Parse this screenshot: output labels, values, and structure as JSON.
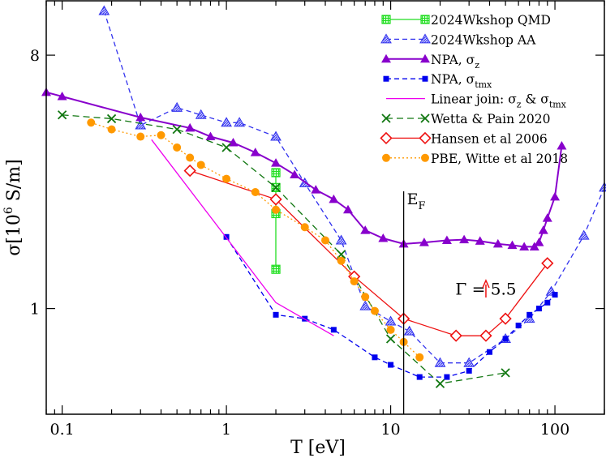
{
  "chart_data": {
    "type": "line",
    "xscale": "log",
    "yscale": "log",
    "xlim": [
      0.08,
      200
    ],
    "ylim": [
      0.42,
      12.5
    ],
    "xlabel": "T [eV]",
    "ylabel": {
      "base": "σ[10",
      "exp": "6",
      "unit": " S/m]"
    },
    "xticks": [
      {
        "value": 0.1,
        "label": "0.1"
      },
      {
        "value": 1,
        "label": "1"
      },
      {
        "value": 10,
        "label": "10"
      },
      {
        "value": 100,
        "label": "100"
      }
    ],
    "yticks": [
      {
        "value": 1,
        "label": "1"
      },
      {
        "value": 8,
        "label": "8"
      }
    ],
    "series": [
      {
        "name": "2024Wkshop QMD",
        "legend_sub": "",
        "color": "#22dd22",
        "dash": "",
        "marker": "hatched-square",
        "x": [
          2,
          2,
          2,
          2
        ],
        "y": [
          3.05,
          2.7,
          2.18,
          1.38
        ]
      },
      {
        "name": "2024Wkshop AA",
        "legend_sub": "",
        "color": "#3333ee",
        "dash": "6,4",
        "marker": "hatched-triangle",
        "x": [
          0.18,
          0.3,
          0.5,
          0.7,
          1.0,
          1.2,
          2,
          3,
          5,
          7,
          10,
          13,
          20,
          30,
          50,
          70,
          95,
          150,
          200
        ],
        "y": [
          11.5,
          4.5,
          5.2,
          4.9,
          4.6,
          4.6,
          4.1,
          2.8,
          1.75,
          1.02,
          0.9,
          0.83,
          0.64,
          0.64,
          0.78,
          0.92,
          1.15,
          1.82,
          2.7
        ]
      },
      {
        "name": "NPA, σ",
        "legend_sub": "z",
        "color": "#8800cc",
        "dash": "",
        "marker": "triangle",
        "x": [
          0.08,
          0.1,
          0.3,
          0.6,
          0.8,
          1.1,
          1.5,
          2,
          2.6,
          3.5,
          4.5,
          5.5,
          7,
          9,
          12,
          16,
          22,
          28,
          35,
          45,
          55,
          65,
          75,
          80,
          85,
          90,
          100,
          110
        ],
        "y": [
          5.9,
          5.7,
          4.8,
          4.4,
          4.1,
          3.9,
          3.6,
          3.3,
          3.0,
          2.65,
          2.45,
          2.25,
          1.9,
          1.78,
          1.7,
          1.72,
          1.75,
          1.76,
          1.74,
          1.7,
          1.68,
          1.66,
          1.66,
          1.72,
          1.9,
          2.1,
          2.5,
          3.8
        ]
      },
      {
        "name": "NPA, σ",
        "legend_sub": "tmx",
        "color": "#0000ee",
        "dash": "6,4",
        "marker": "square",
        "x": [
          1,
          2,
          3,
          4.5,
          8,
          10,
          15,
          22,
          30,
          40,
          50,
          60,
          70,
          80,
          90,
          100
        ],
        "y": [
          1.8,
          0.95,
          0.92,
          0.84,
          0.67,
          0.63,
          0.57,
          0.57,
          0.6,
          0.7,
          0.78,
          0.87,
          0.95,
          1.0,
          1.05,
          1.12
        ]
      },
      {
        "name": "Linear join: σ",
        "legend_sub": "z",
        "legend_tail": " &  σ",
        "legend_sub2": "tmx",
        "color": "#ee00ee",
        "dash": "",
        "marker": "none",
        "x": [
          0.35,
          2,
          4.5
        ],
        "y": [
          4.0,
          1.05,
          0.8
        ]
      },
      {
        "name": "Wetta & Pain  2020",
        "legend_sub": "",
        "color": "#117711",
        "dash": "8,5",
        "marker": "cross",
        "x": [
          0.1,
          0.2,
          0.5,
          1,
          2,
          5,
          10,
          20,
          50
        ],
        "y": [
          4.9,
          4.75,
          4.35,
          3.75,
          2.7,
          1.56,
          0.78,
          0.54,
          0.59
        ]
      },
      {
        "name": "Hansen et al 2006",
        "legend_sub": "",
        "color": "#ee1111",
        "dash": "",
        "marker": "diamond",
        "x": [
          0.6,
          2,
          6,
          12,
          25,
          38,
          50,
          90
        ],
        "y": [
          3.1,
          2.45,
          1.3,
          0.92,
          0.8,
          0.8,
          0.92,
          1.45
        ]
      },
      {
        "name": "PBE, Witte et al 2018",
        "legend_sub": "",
        "color": "#ff9900",
        "dash": "2,3",
        "marker": "circle",
        "x": [
          0.15,
          0.2,
          0.3,
          0.4,
          0.5,
          0.6,
          0.7,
          1,
          1.5,
          2,
          3,
          4,
          5,
          6,
          7,
          8,
          10,
          12,
          15
        ],
        "y": [
          4.6,
          4.35,
          4.1,
          4.15,
          3.75,
          3.45,
          3.25,
          2.9,
          2.6,
          2.25,
          1.95,
          1.75,
          1.48,
          1.25,
          1.1,
          0.98,
          0.84,
          0.76,
          0.67
        ]
      }
    ],
    "vline": {
      "x": 12,
      "label": "E",
      "sub": "F"
    },
    "annotation": {
      "text": "Γ = 5.5",
      "x": 38,
      "y": 1.12,
      "color": "#ee1111"
    },
    "legend_position": "top-right"
  }
}
